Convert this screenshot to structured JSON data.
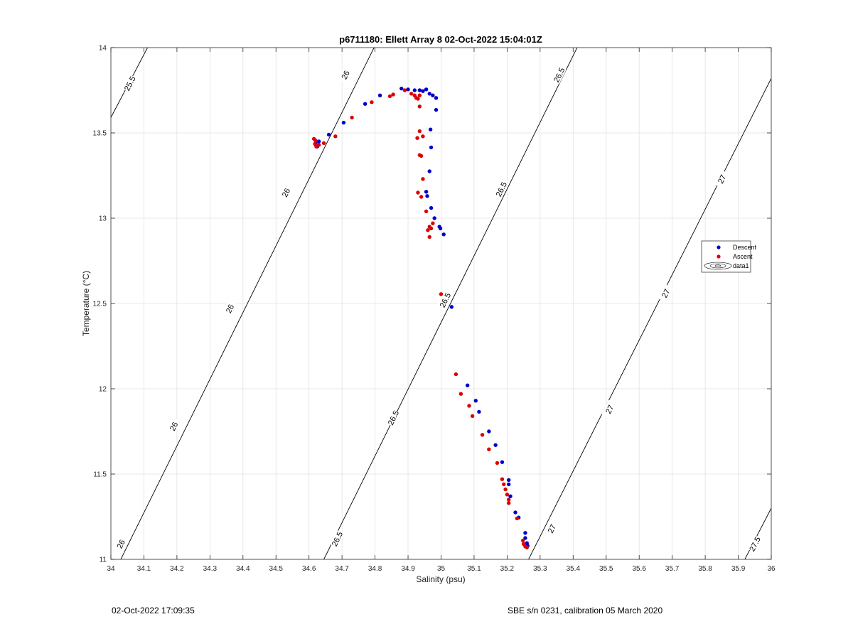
{
  "chart_data": {
    "type": "scatter",
    "title": "p6711180: Ellett Array 8 02-Oct-2022 15:04:01Z",
    "xlabel": "Salinity (psu)",
    "ylabel": "Temperature (°C)",
    "xlim": [
      34,
      36
    ],
    "ylim": [
      11,
      14
    ],
    "grid": true,
    "x_ticks": [
      "34",
      "34.1",
      "34.2",
      "34.3",
      "34.4",
      "34.5",
      "34.6",
      "34.7",
      "34.8",
      "34.9",
      "35",
      "35.1",
      "35.2",
      "35.3",
      "35.4",
      "35.5",
      "35.6",
      "35.7",
      "35.8",
      "35.9",
      "36"
    ],
    "y_ticks": [
      "11",
      "11.5",
      "12",
      "12.5",
      "13",
      "13.5",
      "14"
    ],
    "legend": {
      "placement": "right",
      "entries": [
        "Descent",
        "Ascent",
        "data1"
      ]
    },
    "colors": {
      "descent": "#0000cc",
      "ascent": "#dd0000",
      "contour": "#000000",
      "grid": "#e2e2e2"
    },
    "contours": [
      {
        "level": 25.5,
        "points": [
          [
            34,
            13.59
          ],
          [
            34.111,
            14
          ]
        ],
        "labels": [
          {
            "text": "25.5",
            "at": [
              34.057,
              13.79
            ]
          }
        ]
      },
      {
        "level": 26,
        "points": [
          [
            34.03,
            11
          ],
          [
            34.797,
            14
          ]
        ],
        "labels": [
          {
            "text": "26",
            "at": [
              34.03,
              11.09
            ]
          },
          {
            "text": "26",
            "at": [
              34.19,
              11.78
            ]
          },
          {
            "text": "26",
            "at": [
              34.36,
              12.47
            ]
          },
          {
            "text": "26",
            "at": [
              34.53,
              13.15
            ]
          },
          {
            "text": "26",
            "at": [
              34.71,
              13.84
            ]
          }
        ]
      },
      {
        "level": 26.5,
        "points": [
          [
            34.645,
            11
          ],
          [
            35.412,
            14
          ]
        ],
        "labels": [
          {
            "text": "26.5",
            "at": [
              34.685,
              11.12
            ]
          },
          {
            "text": "26.5",
            "at": [
              34.855,
              11.83
            ]
          },
          {
            "text": "26.5",
            "at": [
              35.012,
              12.52
            ]
          },
          {
            "text": "26.5",
            "at": [
              35.182,
              13.17
            ]
          },
          {
            "text": "26.5",
            "at": [
              35.357,
              13.84
            ]
          }
        ]
      },
      {
        "level": 27,
        "points": [
          [
            35.265,
            11
          ],
          [
            36,
            13.82
          ]
        ],
        "labels": [
          {
            "text": "27",
            "at": [
              35.335,
              11.18
            ]
          },
          {
            "text": "27",
            "at": [
              35.51,
              11.88
            ]
          },
          {
            "text": "27",
            "at": [
              35.68,
              12.56
            ]
          },
          {
            "text": "27",
            "at": [
              35.85,
              13.23
            ]
          }
        ]
      },
      {
        "level": 27.5,
        "points": [
          [
            35.92,
            11
          ],
          [
            36,
            11.3
          ]
        ],
        "labels": [
          {
            "text": "27.5",
            "at": [
              35.95,
              11.09
            ]
          }
        ]
      }
    ],
    "series": [
      {
        "name": "Descent",
        "points": [
          [
            34.62,
            13.44
          ],
          [
            34.625,
            13.42
          ],
          [
            34.63,
            13.45
          ],
          [
            34.66,
            13.49
          ],
          [
            34.705,
            13.56
          ],
          [
            34.77,
            13.67
          ],
          [
            34.815,
            13.72
          ],
          [
            34.88,
            13.76
          ],
          [
            34.9,
            13.755
          ],
          [
            34.92,
            13.75
          ],
          [
            34.935,
            13.75
          ],
          [
            34.945,
            13.745
          ],
          [
            34.955,
            13.755
          ],
          [
            34.965,
            13.73
          ],
          [
            34.975,
            13.72
          ],
          [
            34.985,
            13.705
          ],
          [
            34.985,
            13.635
          ],
          [
            34.968,
            13.52
          ],
          [
            34.97,
            13.415
          ],
          [
            34.965,
            13.275
          ],
          [
            34.955,
            13.155
          ],
          [
            34.958,
            13.13
          ],
          [
            34.97,
            13.06
          ],
          [
            34.98,
            13.0
          ],
          [
            34.995,
            12.95
          ],
          [
            34.998,
            12.94
          ],
          [
            35.008,
            12.905
          ],
          [
            35.032,
            12.48
          ],
          [
            35.08,
            12.02
          ],
          [
            35.105,
            11.93
          ],
          [
            35.115,
            11.865
          ],
          [
            35.145,
            11.75
          ],
          [
            35.165,
            11.67
          ],
          [
            35.185,
            11.57
          ],
          [
            35.205,
            11.465
          ],
          [
            35.205,
            11.44
          ],
          [
            35.21,
            11.37
          ],
          [
            35.225,
            11.275
          ],
          [
            35.235,
            11.245
          ],
          [
            35.255,
            11.155
          ],
          [
            35.255,
            11.125
          ],
          [
            35.26,
            11.095
          ],
          [
            35.262,
            11.08
          ]
        ]
      },
      {
        "name": "Ascent",
        "points": [
          [
            34.615,
            13.465
          ],
          [
            34.62,
            13.455
          ],
          [
            34.618,
            13.435
          ],
          [
            34.622,
            13.42
          ],
          [
            34.63,
            13.43
          ],
          [
            34.645,
            13.44
          ],
          [
            34.68,
            13.48
          ],
          [
            34.73,
            13.59
          ],
          [
            34.79,
            13.68
          ],
          [
            34.845,
            13.715
          ],
          [
            34.855,
            13.725
          ],
          [
            34.89,
            13.75
          ],
          [
            34.91,
            13.73
          ],
          [
            34.92,
            13.72
          ],
          [
            34.925,
            13.705
          ],
          [
            34.93,
            13.7
          ],
          [
            34.935,
            13.72
          ],
          [
            34.935,
            13.655
          ],
          [
            34.928,
            13.47
          ],
          [
            34.935,
            13.51
          ],
          [
            34.945,
            13.48
          ],
          [
            34.935,
            13.37
          ],
          [
            34.94,
            13.365
          ],
          [
            34.945,
            13.23
          ],
          [
            34.93,
            13.15
          ],
          [
            34.94,
            13.125
          ],
          [
            34.955,
            13.04
          ],
          [
            34.96,
            12.93
          ],
          [
            34.965,
            12.95
          ],
          [
            34.97,
            12.94
          ],
          [
            34.975,
            12.97
          ],
          [
            34.965,
            12.89
          ],
          [
            35.0,
            12.555
          ],
          [
            35.045,
            12.085
          ],
          [
            35.06,
            11.97
          ],
          [
            35.085,
            11.9
          ],
          [
            35.095,
            11.84
          ],
          [
            35.125,
            11.73
          ],
          [
            35.145,
            11.645
          ],
          [
            35.17,
            11.565
          ],
          [
            35.185,
            11.47
          ],
          [
            35.19,
            11.44
          ],
          [
            35.195,
            11.41
          ],
          [
            35.2,
            11.38
          ],
          [
            35.205,
            11.35
          ],
          [
            35.205,
            11.33
          ],
          [
            35.23,
            11.24
          ],
          [
            35.248,
            11.11
          ],
          [
            35.25,
            11.09
          ],
          [
            35.255,
            11.075
          ],
          [
            35.26,
            11.07
          ]
        ]
      }
    ]
  },
  "footer": {
    "left": "02-Oct-2022 17:09:35",
    "right": "SBE s/n 0231, calibration 05 March 2020"
  }
}
